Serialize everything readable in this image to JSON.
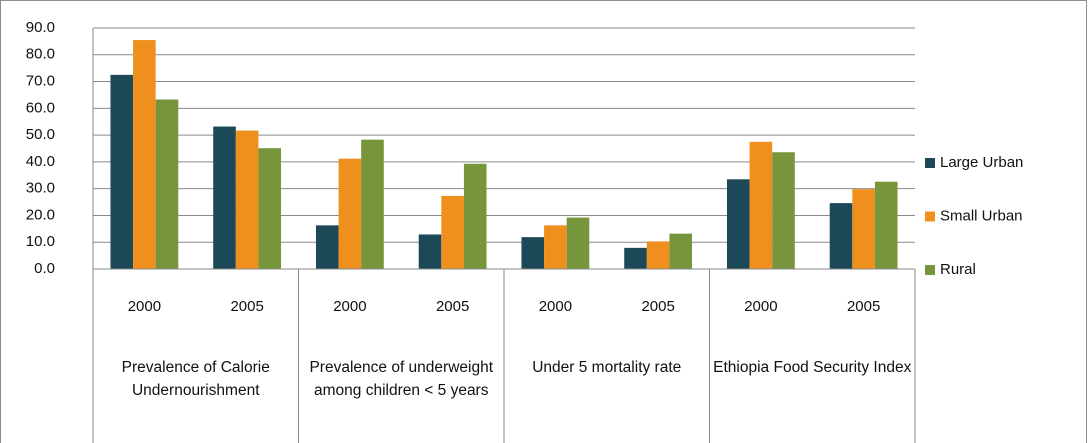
{
  "chart_data": {
    "type": "bar",
    "groups": [
      {
        "label": "Prevalence of Calorie Undernourishment",
        "categories": [
          "2000",
          "2005"
        ]
      },
      {
        "label": "Prevalence of underweight among children < 5 years",
        "categories": [
          "2000",
          "2005"
        ]
      },
      {
        "label": "Under 5 mortality rate",
        "categories": [
          "2000",
          "2005"
        ]
      },
      {
        "label": "Ethiopia Food Security Index",
        "categories": [
          "2000",
          "2005"
        ]
      }
    ],
    "series": [
      {
        "name": "Large Urban",
        "color": "#1d4858",
        "values": [
          72.5,
          53.2,
          16.3,
          12.9,
          11.9,
          7.9,
          33.5,
          24.6
        ]
      },
      {
        "name": "Small Urban",
        "color": "#ef901e",
        "values": [
          85.5,
          51.7,
          41.2,
          27.3,
          16.3,
          10.3,
          47.5,
          29.8
        ]
      },
      {
        "name": "Rural",
        "color": "#77953b",
        "values": [
          63.3,
          45.1,
          48.3,
          39.3,
          19.2,
          13.2,
          43.6,
          32.6
        ]
      }
    ],
    "ylim": [
      0,
      90
    ],
    "yticks": [
      {
        "value": 0,
        "label": "0.0"
      },
      {
        "value": 10,
        "label": "10.0"
      },
      {
        "value": 20,
        "label": "20.0"
      },
      {
        "value": 30,
        "label": "30.0"
      },
      {
        "value": 40,
        "label": "40.0"
      },
      {
        "value": 50,
        "label": "50.0"
      },
      {
        "value": 60,
        "label": "60.0"
      },
      {
        "value": 70,
        "label": "70.0"
      },
      {
        "value": 80,
        "label": "80.0"
      },
      {
        "value": 90,
        "label": "90.0"
      }
    ],
    "grid": true,
    "legend": "right"
  }
}
